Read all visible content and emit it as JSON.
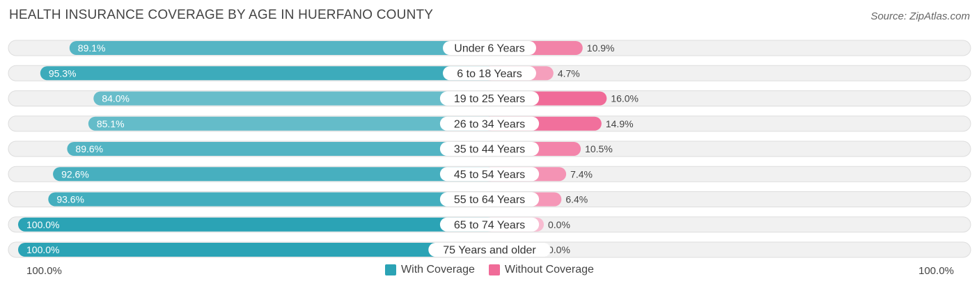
{
  "header": {
    "title": "HEALTH INSURANCE COVERAGE BY AGE IN HUERFANO COUNTY",
    "source": "Source: ZipAtlas.com"
  },
  "chart_data": {
    "type": "bar",
    "orientation": "horizontal-diverging",
    "title": "HEALTH INSURANCE COVERAGE BY AGE IN HUERFANO COUNTY",
    "categories": [
      "Under 6 Years",
      "6 to 18 Years",
      "19 to 25 Years",
      "26 to 34 Years",
      "35 to 44 Years",
      "45 to 54 Years",
      "55 to 64 Years",
      "65 to 74 Years",
      "75 Years and older"
    ],
    "series": [
      {
        "name": "With Coverage",
        "color": "#2ba3b5",
        "values": [
          89.1,
          95.3,
          84.0,
          85.1,
          89.6,
          92.6,
          93.6,
          100.0,
          100.0
        ],
        "labels": [
          "89.1%",
          "95.3%",
          "84.0%",
          "85.1%",
          "89.6%",
          "92.6%",
          "93.6%",
          "100.0%",
          "100.0%"
        ]
      },
      {
        "name": "Without Coverage",
        "color": "#f06b98",
        "values": [
          10.9,
          4.7,
          16.0,
          14.9,
          10.5,
          7.4,
          6.4,
          0.0,
          0.0
        ],
        "labels": [
          "10.9%",
          "4.7%",
          "16.0%",
          "14.9%",
          "10.5%",
          "7.4%",
          "6.4%",
          "0.0%",
          "0.0%"
        ]
      }
    ],
    "axis": {
      "left_label": "100.0%",
      "right_label": "100.0%",
      "range": [
        0,
        100
      ]
    },
    "legend_position": "bottom-center"
  },
  "legend": {
    "items": [
      {
        "label": "With Coverage",
        "color": "#2ba3b5"
      },
      {
        "label": "Without Coverage",
        "color": "#f06b98"
      }
    ]
  }
}
